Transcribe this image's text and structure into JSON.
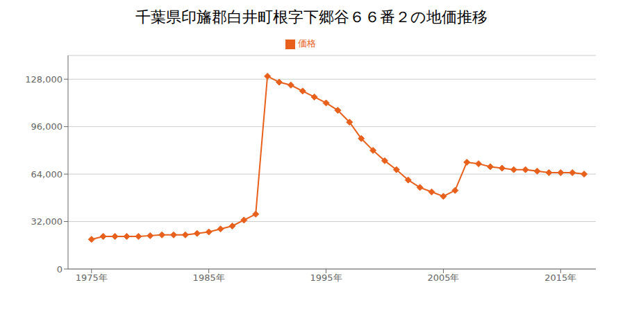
{
  "chart_data": {
    "type": "line",
    "title": "千葉県印旛郡白井町根字下郷谷６６番２の地価推移",
    "x": [
      1975,
      1976,
      1977,
      1978,
      1979,
      1980,
      1981,
      1982,
      1983,
      1984,
      1985,
      1986,
      1987,
      1988,
      1989,
      1990,
      1991,
      1992,
      1993,
      1994,
      1995,
      1996,
      1997,
      1998,
      1999,
      2000,
      2001,
      2002,
      2003,
      2004,
      2005,
      2006,
      2007,
      2008,
      2009,
      2010,
      2011,
      2012,
      2013,
      2014,
      2015,
      2016,
      2017
    ],
    "series": [
      {
        "name": "価格",
        "color": "#e8601c",
        "marker": "diamond",
        "values": [
          20000,
          22000,
          22000,
          22000,
          22000,
          22500,
          23000,
          23000,
          23000,
          24000,
          25000,
          27000,
          29000,
          33000,
          37000,
          130000,
          126000,
          124000,
          120000,
          116000,
          112000,
          107000,
          99000,
          88000,
          80000,
          73000,
          67000,
          60000,
          55000,
          52000,
          49000,
          53000,
          72000,
          71000,
          69000,
          68000,
          67000,
          67000,
          66000,
          65000,
          65000,
          65000,
          64000
        ]
      }
    ],
    "xlim": [
      1973,
      2018
    ],
    "xticks": [
      {
        "value": 1975,
        "label": "1975年"
      },
      {
        "value": 1985,
        "label": "1985年"
      },
      {
        "value": 1995,
        "label": "1995年"
      },
      {
        "value": 2005,
        "label": "2005年"
      },
      {
        "value": 2015,
        "label": "2015年"
      }
    ],
    "ylim": [
      0,
      144000
    ],
    "yticks": [
      0,
      {
        "value": 32000,
        "label": "32,000"
      },
      {
        "value": 64000,
        "label": "64,000"
      },
      {
        "value": 96000,
        "label": "96,000"
      },
      {
        "value": 128000,
        "label": "128,000"
      }
    ],
    "grid": "y",
    "legend": "top"
  }
}
